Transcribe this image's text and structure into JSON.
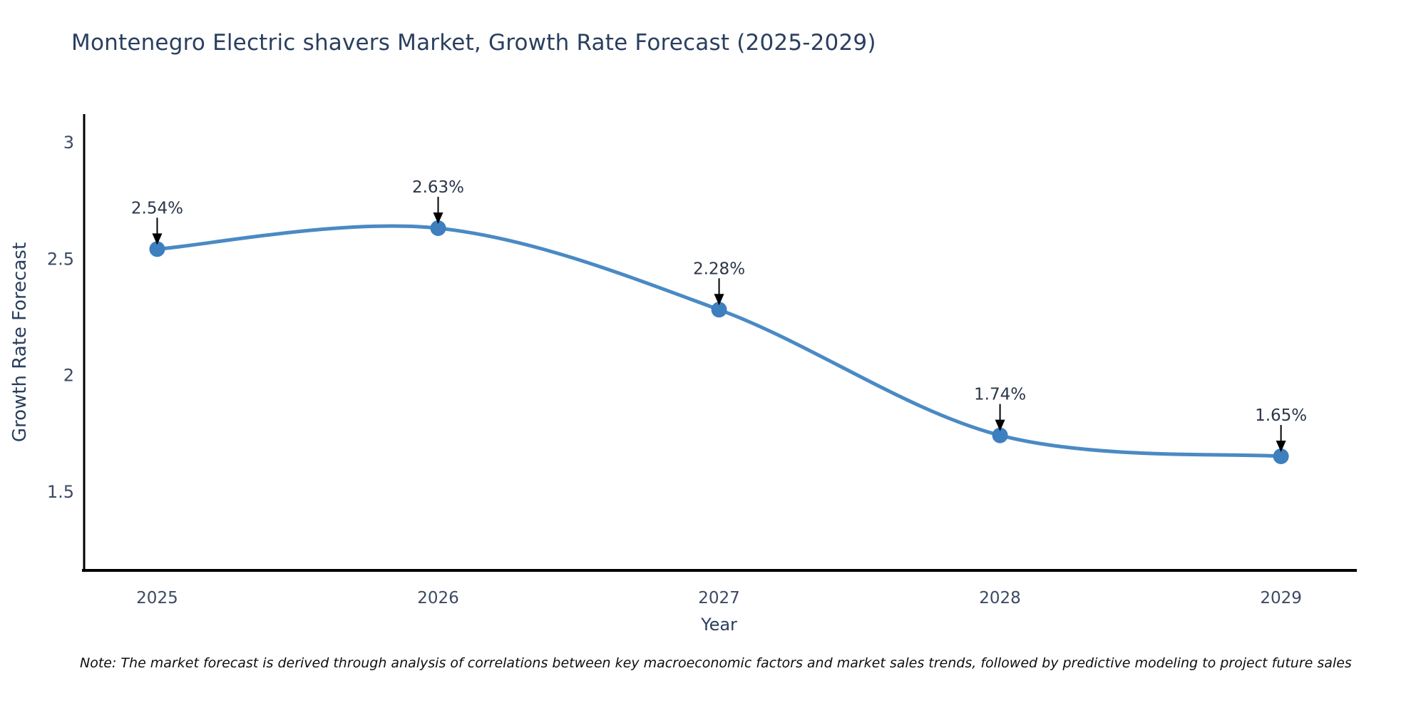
{
  "chart_data": {
    "type": "line",
    "title": "Montenegro Electric shavers Market, Growth Rate Forecast (2025-2029)",
    "xlabel": "Year",
    "ylabel": "Growth Rate Forecast",
    "x": [
      2025,
      2026,
      2027,
      2028,
      2029
    ],
    "x_tick_labels": [
      "2025",
      "2026",
      "2027",
      "2028",
      "2029"
    ],
    "series": [
      {
        "name": "Growth Rate Forecast",
        "values": [
          2.54,
          2.63,
          2.28,
          1.74,
          1.65
        ]
      }
    ],
    "point_labels": [
      "2.54%",
      "2.63%",
      "2.28%",
      "1.74%",
      "1.65%"
    ],
    "y_ticks": [
      3,
      2.5,
      2,
      1.5
    ],
    "y_tick_labels": [
      "3",
      "2.5",
      "2",
      "1.5"
    ],
    "ylim": [
      1.16,
      3.12
    ],
    "xlim": [
      2024.74,
      2029.27
    ],
    "grid": false,
    "legend_position": "none",
    "line_shape": "spline",
    "annotation_style": "down-arrow",
    "colors": {
      "line": "#4a8ac4",
      "marker": "#3d7fbf",
      "title_text": "#2a3f5f",
      "axis_title_text": "#2a3f5f",
      "tick_text": "#3b4a63",
      "annotation_text": "#2b3648",
      "annotation_arrow": "#000000",
      "axis_line": "#000000",
      "background": "#ffffff"
    }
  },
  "footnote": "Note: The market forecast is derived through analysis of correlations between key macroeconomic factors and market sales trends, followed by predictive modeling to project future sales"
}
